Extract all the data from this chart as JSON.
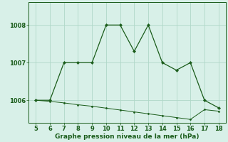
{
  "line1_x": [
    5,
    6,
    7,
    8,
    9,
    10,
    11,
    12,
    13,
    14,
    15,
    16,
    17,
    18
  ],
  "line1_y": [
    1006.0,
    1006.0,
    1007.0,
    1007.0,
    1007.0,
    1008.0,
    1008.0,
    1007.3,
    1008.0,
    1007.0,
    1006.8,
    1007.0,
    1006.0,
    1005.8
  ],
  "line2_x": [
    5,
    6,
    7,
    8,
    9,
    10,
    11,
    12,
    13,
    14,
    15,
    16,
    17,
    18
  ],
  "line2_y": [
    1006.0,
    1005.97,
    1005.93,
    1005.88,
    1005.84,
    1005.79,
    1005.74,
    1005.69,
    1005.64,
    1005.59,
    1005.54,
    1005.49,
    1005.75,
    1005.71
  ],
  "line_color": "#1a5c1a",
  "bg_color": "#d8f0e8",
  "grid_color": "#b0d8c8",
  "xlabel": "Graphe pression niveau de la mer (hPa)",
  "ylim": [
    1005.4,
    1008.6
  ],
  "xlim": [
    4.5,
    18.5
  ],
  "yticks": [
    1006,
    1007,
    1008
  ],
  "xticks": [
    5,
    6,
    7,
    8,
    9,
    10,
    11,
    12,
    13,
    14,
    15,
    16,
    17,
    18
  ],
  "xlabel_fontsize": 6.5,
  "tick_fontsize": 6.0
}
